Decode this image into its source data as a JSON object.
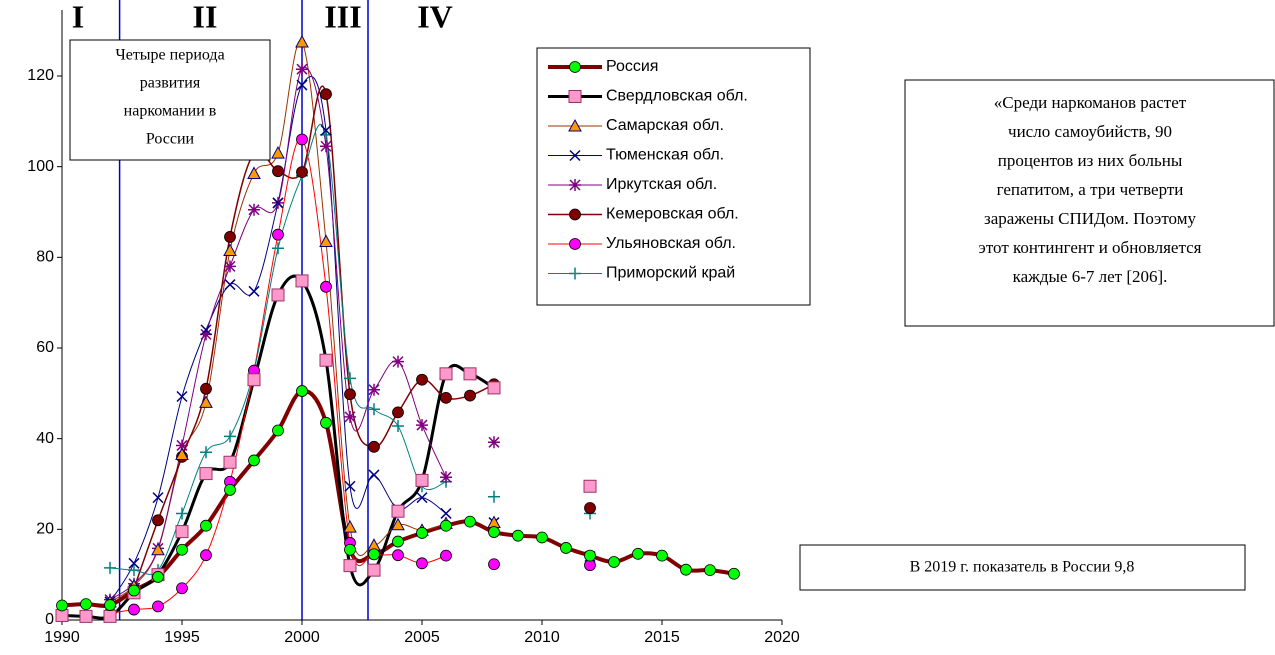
{
  "chart_data": {
    "type": "line",
    "x": [
      1990,
      1991,
      1992,
      1993,
      1994,
      1995,
      1996,
      1997,
      1998,
      1999,
      2000,
      2001,
      2002,
      2003,
      2004,
      2005,
      2006,
      2007,
      2008,
      2009,
      2010,
      2011,
      2012,
      2013,
      2014,
      2015,
      2016,
      2017,
      2018
    ],
    "xlim": [
      1990,
      2020
    ],
    "xticks": [
      1990,
      1995,
      2000,
      2005,
      2010,
      2015,
      2020
    ],
    "ylim": [
      0,
      120
    ],
    "yticks": [
      0,
      20,
      40,
      60,
      80,
      100,
      120
    ],
    "period_lines": [
      1992.4,
      2000,
      2002.75
    ],
    "period_labels": [
      "I",
      "II",
      "III",
      "IV"
    ],
    "series": [
      {
        "name": "Россия",
        "color": "#800000",
        "marker": "circle",
        "marker_color": "#00ff00",
        "width": 4,
        "values": [
          3.2,
          3.5,
          3.3,
          6.5,
          9.5,
          15.5,
          20.8,
          28.7,
          35.2,
          41.8,
          50.5,
          43.5,
          15.5,
          14.5,
          17.3,
          19.2,
          20.8,
          21.7,
          19.4,
          18.6,
          18.2,
          15.9,
          14.2,
          12.8,
          14.6,
          14.2,
          11.1,
          11.0,
          10.2
        ]
      },
      {
        "name": "Свердловская обл.",
        "color": "#000000",
        "marker": "square",
        "marker_color": "#ff99cc",
        "width": 3,
        "values": [
          1.0,
          0.8,
          0.8,
          6,
          10,
          19.5,
          32.3,
          34.8,
          53,
          71.7,
          74.8,
          57.3,
          12,
          11,
          24,
          30.8,
          54.3,
          54.3,
          51.2,
          null,
          null,
          null,
          29.5,
          null,
          null,
          null,
          null,
          null,
          null
        ]
      },
      {
        "name": "Самарская обл.",
        "color": "#993300",
        "marker": "triangle",
        "marker_color": "#ff9900",
        "width": 1,
        "values": [
          null,
          null,
          4,
          7.5,
          15.5,
          36.5,
          48,
          81.5,
          98.5,
          103,
          127.5,
          83.5,
          20.5,
          16.5,
          21,
          19.8,
          21.3,
          null,
          21.5,
          null,
          null,
          null,
          null,
          null,
          null,
          null,
          null,
          null,
          null
        ]
      },
      {
        "name": "Тюменская обл.",
        "color": "#000080",
        "marker": "x",
        "marker_color": "#000080",
        "width": 1,
        "values": [
          null,
          null,
          4,
          12.5,
          27,
          49.3,
          64,
          74,
          72.5,
          92,
          118,
          108,
          29.5,
          32,
          24.5,
          27,
          23.5,
          null,
          21.5,
          null,
          null,
          null,
          14,
          null,
          null,
          null,
          null,
          null,
          null
        ]
      },
      {
        "name": "Иркутская обл.",
        "color": "#800080",
        "marker": "asterisk",
        "marker_color": "#800080",
        "width": 1,
        "values": [
          null,
          null,
          4.5,
          8,
          15.8,
          38.5,
          63,
          78,
          90.5,
          92,
          121.5,
          104.5,
          44.8,
          50.8,
          57,
          43,
          31.5,
          null,
          39.2,
          null,
          null,
          null,
          null,
          null,
          null,
          null,
          null,
          null,
          null
        ]
      },
      {
        "name": "Кемеровская обл.",
        "color": "#800000",
        "marker": "circle",
        "marker_color": "#800000",
        "width": 1.5,
        "values": [
          null,
          null,
          null,
          7,
          22,
          36,
          51,
          84.5,
          103,
          99,
          98.8,
          116,
          49.8,
          38.2,
          45.8,
          53,
          49,
          49.5,
          52,
          null,
          null,
          null,
          24.7,
          null,
          null,
          null,
          null,
          null,
          null
        ]
      },
      {
        "name": "Ульяновская обл.",
        "color": "#ff0000",
        "marker": "circle",
        "marker_color": "#ff00ff",
        "width": 1,
        "values": [
          null,
          null,
          1.5,
          2.3,
          3,
          7,
          14.3,
          30.5,
          55,
          85,
          106,
          73.5,
          17,
          14.5,
          14.3,
          12.5,
          14.2,
          null,
          12.3,
          null,
          null,
          null,
          12.1,
          null,
          null,
          null,
          null,
          null,
          null
        ]
      },
      {
        "name": "Приморский край",
        "color": "#008080",
        "marker": "plus",
        "marker_color": "#008080",
        "width": 1,
        "values": [
          null,
          null,
          11.5,
          11,
          11,
          23.5,
          37,
          40.5,
          55,
          82,
          98,
          107,
          53.3,
          46.5,
          42.8,
          29.5,
          30.5,
          null,
          27.2,
          null,
          null,
          null,
          23.5,
          null,
          null,
          null,
          null,
          null,
          null
        ]
      }
    ],
    "periods_box": [
      "Четыре периода",
      "развития",
      "наркомании в",
      "России"
    ],
    "quote_box": [
      "«Среди наркоманов растет",
      "число самоубийств, 90",
      "процентов из них больны",
      "гепатитом, а три четверти",
      "заражены СПИДом. Поэтому",
      "этот контингент и обновляется",
      "каждые 6-7 лет [206]."
    ],
    "note_box": "В 2019 г. показатель в России 9,8"
  }
}
